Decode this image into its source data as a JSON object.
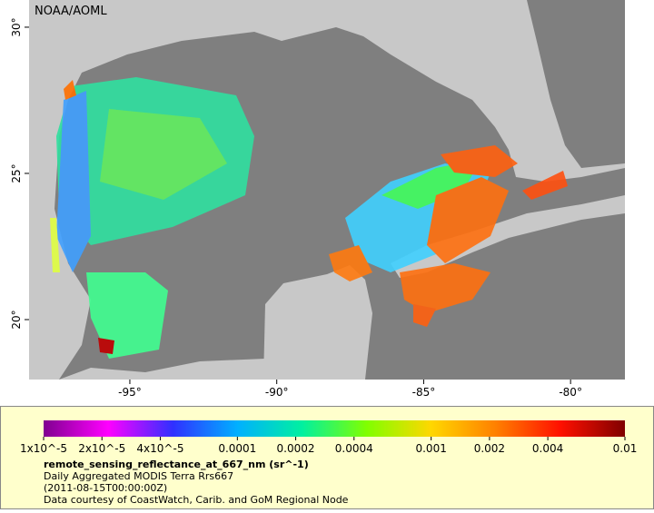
{
  "map": {
    "credit": "NOAA/AOML",
    "xlim": [
      -98.43,
      -78.15
    ],
    "ylim": [
      17.95,
      30.93
    ],
    "lon_ticks": [
      {
        "value": -95,
        "label": "-95°"
      },
      {
        "value": -90,
        "label": "-90°"
      },
      {
        "value": -85,
        "label": "-85°"
      },
      {
        "value": -80,
        "label": "-80°"
      }
    ],
    "lat_ticks": [
      {
        "value": 20,
        "label": "20°"
      },
      {
        "value": 25,
        "label": "25°"
      },
      {
        "value": 30,
        "label": "30°"
      }
    ]
  },
  "colorbar": {
    "log_scale": true,
    "lim": [
      1e-05,
      0.01
    ],
    "colors": [
      "#800090",
      "#ff00ff",
      "#3030ff",
      "#00b0ff",
      "#00f0a0",
      "#80ff00",
      "#ffd700",
      "#ff8000",
      "#ff1000",
      "#800000"
    ],
    "ticks": [
      {
        "value": 1e-05,
        "label": "1x10^-5"
      },
      {
        "value": 2e-05,
        "label": "2x10^-5"
      },
      {
        "value": 4e-05,
        "label": "4x10^-5"
      },
      0.0001,
      0.0002,
      0.0004,
      0.001,
      0.002,
      0.004,
      0.01
    ]
  },
  "legend": {
    "variable": "remote_sensing_reflectance_at_667_nm (sr^-1)",
    "dataset": "Daily Aggregated MODIS Terra Rrs667",
    "time": "(2011-08-15T00:00:00Z)",
    "source": "Data courtesy of CoastWatch, Carib. and GoM Regional Node"
  }
}
